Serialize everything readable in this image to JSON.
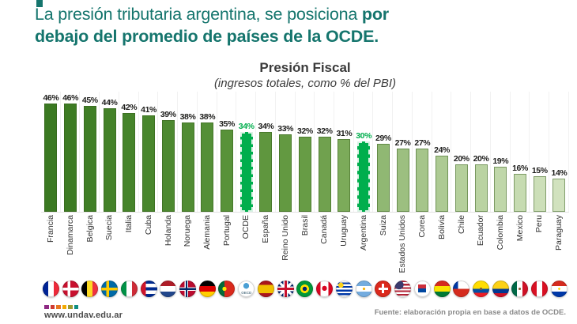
{
  "header": {
    "accent_color": "#15756d",
    "line1_normal": "La presión tributaria argentina, se posiciona ",
    "line1_bold": "por",
    "line2_bold": "debajo del promedio de países de la OCDE."
  },
  "chart_data": {
    "type": "bar",
    "title": "Presión Fiscal",
    "subtitle": "(ingresos totales, como % del PBI)",
    "unit": "%",
    "ylim": [
      0,
      50
    ],
    "grid": "faint vertical separators between categories",
    "legend": "none",
    "categories": [
      "Francia",
      "Dinamarca",
      "Belgica",
      "Suecia",
      "Italia",
      "Cuba",
      "Holanda",
      "Noruega",
      "Alemania",
      "Portugal",
      "OCDE",
      "España",
      "Reino Unido",
      "Brasil",
      "Canadá",
      "Uruguay",
      "Argentina",
      "Suiza",
      "Estados Unidos",
      "Corea",
      "Bolivia",
      "Chile",
      "Ecuador",
      "Colombia",
      "Mexico",
      "Peru",
      "Paraguay"
    ],
    "values": [
      46,
      46,
      45,
      44,
      42,
      41,
      39,
      38,
      38,
      35,
      34,
      34,
      33,
      32,
      32,
      31,
      30,
      29,
      27,
      27,
      24,
      20,
      20,
      19,
      16,
      15,
      14
    ],
    "labels": [
      "46%",
      "46%",
      "45%",
      "44%",
      "42%",
      "41%",
      "39%",
      "38%",
      "38%",
      "35%",
      "34%",
      "34%",
      "33%",
      "32%",
      "32%",
      "31%",
      "30%",
      "29%",
      "27%",
      "27%",
      "24%",
      "20%",
      "20%",
      "19%",
      "16%",
      "15%",
      "14%"
    ],
    "highlight_categories": [
      "OCDE",
      "Argentina"
    ],
    "highlight_color": "#00AE4D",
    "label_color": "#1d1d1b",
    "bar_colors": [
      "#3B7922",
      "#3D7B23",
      "#407E26",
      "#438128",
      "#46842B",
      "#49862D",
      "#4D8930",
      "#518C33",
      "#548F36",
      "#589239",
      "#00AE4D",
      "#5F963E",
      "#639941",
      "#679C45",
      "#70A14E",
      "#7CAB5A",
      "#00AE4D",
      "#90B873",
      "#9CBF80",
      "#A5C58A",
      "#ADCA93",
      "#B4CF9B",
      "#BAD3A2",
      "#C0D7AA",
      "#C6DBB1",
      "#CCDFB8",
      "#D1E2BE"
    ]
  },
  "flags": [
    {
      "name": "flag-francia-icon",
      "bg": "linear-gradient(90deg,#002395 0 33%,#fff 33% 67%,#ED2939 67%)"
    },
    {
      "name": "flag-dinamarca-icon",
      "bg": "linear-gradient(0deg,transparent 41%,#fff 41% 57%,transparent 57%),linear-gradient(90deg,transparent 32%,#fff 32% 48%,transparent 48%),#C8102E"
    },
    {
      "name": "flag-belgica-icon",
      "bg": "linear-gradient(90deg,#000 0 33%,#FDDA24 33% 67%,#EF3340 67%)"
    },
    {
      "name": "flag-suecia-icon",
      "bg": "linear-gradient(0deg,transparent 41%,#FECC02 41% 57%,transparent 57%),linear-gradient(90deg,transparent 32%,#FECC02 32% 48%,transparent 48%),#006AA7"
    },
    {
      "name": "flag-italia-icon",
      "bg": "linear-gradient(90deg,#009246 0 33%,#fff 33% 67%,#CE2B37 67%)"
    },
    {
      "name": "flag-cuba-icon",
      "bg": "linear-gradient(90deg,#CF142B 0 30%,transparent 30%),linear-gradient(180deg,#002A8F 0 20%,#fff 20% 40%,#002A8F 40% 60%,#fff 60% 80%,#002A8F 80%)"
    },
    {
      "name": "flag-holanda-icon",
      "bg": "linear-gradient(180deg,#AE1C28 0 33%,#fff 33% 67%,#21468B 67%)"
    },
    {
      "name": "flag-noruega-icon",
      "bg": "linear-gradient(0deg,transparent 44%,#002868 44% 54%,transparent 54%),linear-gradient(90deg,transparent 37%,#002868 37% 47%,transparent 47%),linear-gradient(0deg,transparent 38%,#fff 38% 60%,transparent 60%),linear-gradient(90deg,transparent 31%,#fff 31% 53%,transparent 53%),#BA0C2F"
    },
    {
      "name": "flag-alemania-icon",
      "bg": "linear-gradient(180deg,#000 0 33%,#DD0000 33% 67%,#FFCE00 67%)"
    },
    {
      "name": "flag-portugal-icon",
      "bg": "radial-gradient(circle at 38% 50%,#FFE900 0 15%,transparent 16%),linear-gradient(90deg,#046A38 0 38%,#DA291C 38%)"
    },
    {
      "name": "ocde-logo-icon",
      "bg": "radial-gradient(circle at 50% 32%,#4A9FD4 0 20%,transparent 21%),#fff",
      "text": "OECD"
    },
    {
      "name": "flag-espana-icon",
      "bg": "linear-gradient(180deg,#AA151B 0 25%,#F1BF00 25% 75%,#AA151B 75%)"
    },
    {
      "name": "flag-reino-unido-icon",
      "bg": "linear-gradient(0deg,transparent 43%,#C8102E 43% 57%,transparent 57%),linear-gradient(90deg,transparent 43%,#C8102E 43% 57%,transparent 57%),linear-gradient(0deg,transparent 36%,#fff 36% 64%,transparent 64%),linear-gradient(90deg,transparent 36%,#fff 36% 64%,transparent 64%),linear-gradient(45deg,transparent 45%,#fff 45% 55%,transparent 55%),linear-gradient(-45deg,transparent 45%,#fff 45% 55%,transparent 55%),#012169"
    },
    {
      "name": "flag-brasil-icon",
      "bg": "radial-gradient(circle at 50% 50%,#002776 0 18%,transparent 19%),radial-gradient(circle at 50% 50%,#FEDF00 0 36%,transparent 37%),#009739"
    },
    {
      "name": "flag-canada-icon",
      "bg": "radial-gradient(circle at 50% 47%,#D80621 0 20%,transparent 21%),linear-gradient(90deg,#D80621 0 27%,#fff 27% 73%,#D80621 73%)"
    },
    {
      "name": "flag-uruguay-icon",
      "bg": "radial-gradient(circle at 30% 28%,#FCD116 0 15%,transparent 16%),linear-gradient(180deg,#fff 0 11%,#0038A8 11% 22%,#fff 22% 33%,#0038A8 33% 44%,#fff 44% 55%,#0038A8 55% 66%,#fff 66% 77%,#0038A8 77% 88%,#fff 88%)"
    },
    {
      "name": "flag-argentina-icon",
      "bg": "radial-gradient(circle at 50% 50%,#F6B40E 0 11%,transparent 12%),linear-gradient(180deg,#74ACDF 0 33%,#fff 33% 67%,#74ACDF 67%)"
    },
    {
      "name": "flag-suiza-icon",
      "bg": "linear-gradient(#fff,#fff) 50% 50%/58% 16% no-repeat,linear-gradient(#fff,#fff) 50% 50%/16% 58% no-repeat,#DA291C"
    },
    {
      "name": "flag-estados-unidos-icon",
      "bg": "radial-gradient(circle at 28% 26%,#3C3B6E 0 26%,transparent 27%),linear-gradient(180deg,#B22234 0 10%,#fff 10% 20%,#B22234 20% 30%,#fff 30% 40%,#B22234 40% 50%,#fff 50% 60%,#B22234 60% 70%,#fff 70% 80%,#B22234 80% 90%,#fff 90%)"
    },
    {
      "name": "flag-corea-icon",
      "bg": "linear-gradient(180deg,#CD2E3A 50%,#0047A0 50%) 50% 50%/48% 48% no-repeat,#fff"
    },
    {
      "name": "flag-bolivia-icon",
      "bg": "linear-gradient(180deg,#D52B1E 0 33%,#F9E300 33% 67%,#007934 67%)"
    },
    {
      "name": "flag-chile-icon",
      "bg": "linear-gradient(0deg,#D52B1E 0 50%,transparent 50%),linear-gradient(90deg,#0039A6 0 32%,#fff 32%)"
    },
    {
      "name": "flag-ecuador-icon",
      "bg": "radial-gradient(circle at 50% 50%,#7B5B35 0 11%,transparent 12%),linear-gradient(180deg,#FFDD00 0 50%,#034EA2 50% 75%,#ED1C24 75%)"
    },
    {
      "name": "flag-colombia-icon",
      "bg": "linear-gradient(180deg,#FCD116 0 50%,#003893 50% 75%,#CE1126 75%)"
    },
    {
      "name": "flag-mexico-icon",
      "bg": "radial-gradient(circle at 50% 50%,#8C6239 0 10%,transparent 11%),linear-gradient(90deg,#006847 0 33%,#fff 33% 67%,#CE1126 67%)"
    },
    {
      "name": "flag-peru-icon",
      "bg": "linear-gradient(90deg,#D91023 0 33%,#fff 33% 67%,#D91023 67%)"
    },
    {
      "name": "flag-paraguay-icon",
      "bg": "radial-gradient(circle at 50% 50%,#FCD116 0 9%,transparent 10%),linear-gradient(180deg,#D52B1E 0 33%,#fff 33% 67%,#0038A8 67%)"
    }
  ],
  "footer": {
    "website": "www.undav.edu.ar",
    "logo_colors": [
      "#8E2A84",
      "#D03A32",
      "#E87722",
      "#F2A900",
      "#9C9B30",
      "#0F8E82"
    ],
    "source": "Fuente: elaboración propia en base a datos de OCDE."
  }
}
